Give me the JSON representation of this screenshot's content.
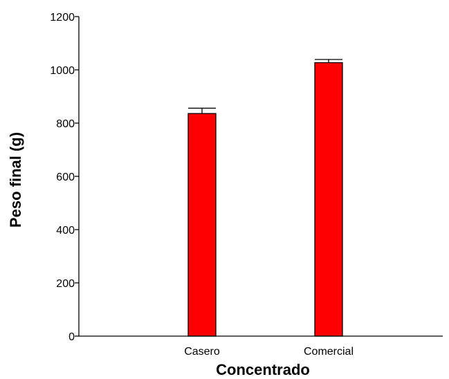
{
  "chart_data": {
    "type": "bar",
    "title": "",
    "xlabel": "Concentrado",
    "ylabel": "Peso final (g)",
    "categories": [
      "Casero",
      "Comercial"
    ],
    "values": [
      836,
      1027
    ],
    "error_bars": [
      20,
      12
    ],
    "ylim": [
      0,
      1200
    ],
    "yticks": [
      0,
      200,
      400,
      600,
      800,
      1000,
      1200
    ],
    "bar_color": "#ff0000",
    "grid": false,
    "legend": "none"
  }
}
